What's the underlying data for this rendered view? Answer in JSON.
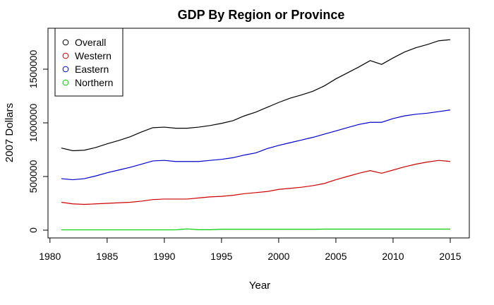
{
  "chart_data": {
    "type": "line",
    "title": "GDP By Region or Province",
    "xlabel": "Year",
    "ylabel": "2007 Dollars",
    "xlim": [
      1980,
      2016
    ],
    "ylim": [
      0,
      1800000
    ],
    "xticks": [
      1980,
      1985,
      1990,
      1995,
      2000,
      2005,
      2010,
      2015
    ],
    "yticks": [
      0,
      500000,
      1000000,
      1500000
    ],
    "grid": false,
    "legend_position": "top-left",
    "x": [
      1981,
      1982,
      1983,
      1984,
      1985,
      1986,
      1987,
      1988,
      1989,
      1990,
      1991,
      1992,
      1993,
      1994,
      1995,
      1996,
      1997,
      1998,
      1999,
      2000,
      2001,
      2002,
      2003,
      2004,
      2005,
      2006,
      2007,
      2008,
      2009,
      2010,
      2011,
      2012,
      2013,
      2014,
      2015
    ],
    "series": [
      {
        "name": "Overall",
        "color": "#000000",
        "values": [
          765000,
          740000,
          745000,
          770000,
          805000,
          835000,
          870000,
          915000,
          955000,
          960000,
          950000,
          950000,
          960000,
          975000,
          995000,
          1020000,
          1065000,
          1100000,
          1145000,
          1190000,
          1230000,
          1260000,
          1295000,
          1345000,
          1410000,
          1465000,
          1520000,
          1580000,
          1545000,
          1605000,
          1660000,
          1700000,
          1730000,
          1765000,
          1775000
        ]
      },
      {
        "name": "Western",
        "color": "#cc0000",
        "values": [
          260000,
          245000,
          240000,
          245000,
          250000,
          255000,
          260000,
          270000,
          285000,
          290000,
          290000,
          290000,
          300000,
          310000,
          315000,
          325000,
          340000,
          350000,
          360000,
          380000,
          390000,
          400000,
          415000,
          435000,
          470000,
          500000,
          530000,
          555000,
          530000,
          560000,
          590000,
          615000,
          635000,
          650000,
          640000
        ]
      },
      {
        "name": "Eastern",
        "color": "#0000cc",
        "values": [
          480000,
          470000,
          480000,
          505000,
          535000,
          560000,
          585000,
          615000,
          645000,
          650000,
          640000,
          640000,
          640000,
          650000,
          660000,
          675000,
          700000,
          720000,
          760000,
          790000,
          815000,
          840000,
          865000,
          895000,
          925000,
          955000,
          985000,
          1005000,
          1005000,
          1040000,
          1065000,
          1080000,
          1090000,
          1105000,
          1120000
        ]
      },
      {
        "name": "Northern",
        "color": "#00cc00",
        "values": [
          3000,
          3000,
          3000,
          3000,
          3000,
          3000,
          3000,
          3000,
          3000,
          3000,
          3000,
          12000,
          4000,
          4000,
          8000,
          8000,
          8000,
          8000,
          8000,
          8000,
          8000,
          8000,
          8000,
          10000,
          10000,
          10000,
          10000,
          10000,
          10000,
          10000,
          10000,
          10000,
          10000,
          10000,
          10000
        ]
      }
    ]
  }
}
